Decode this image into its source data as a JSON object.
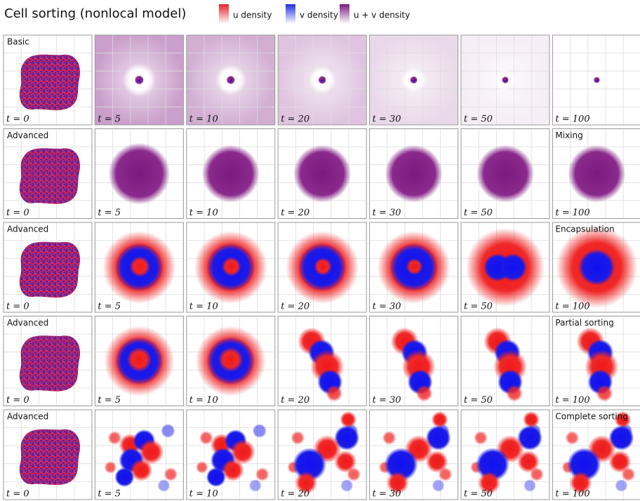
{
  "title": "Cell sorting (nonlocal model)",
  "legend": [
    {
      "label": "u density",
      "color": "#e8202a"
    },
    {
      "label": "v density",
      "color": "#1f2fe0"
    },
    {
      "label": "u + v density",
      "color": "#8a2a8c"
    }
  ],
  "time_labels": [
    "t = 0",
    "t = 5",
    "t = 10",
    "t = 20",
    "t = 30",
    "t = 50",
    "t = 100"
  ],
  "rows": [
    {
      "label": "Basic"
    },
    {
      "label": "Advanced",
      "outcome": "Mixing"
    },
    {
      "label": "Advanced",
      "outcome": "Encapsulation"
    },
    {
      "label": "Advanced",
      "outcome": "Partial sorting"
    },
    {
      "label": "Advanced",
      "outcome": "Complete sorting"
    }
  ]
}
